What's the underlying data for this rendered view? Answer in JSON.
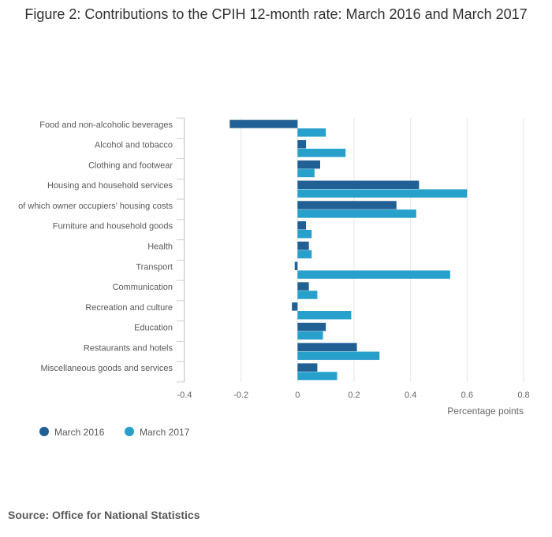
{
  "title": "Figure 2: Contributions to the CPIH 12-month rate: March 2016 and March 2017",
  "source": "Source: Office for National Statistics",
  "colors": {
    "series_2016": "#206095",
    "series_2017": "#27a0cc",
    "grid": "#e6e6e6",
    "axis_text": "#666666"
  },
  "chart_data": {
    "type": "bar",
    "orientation": "horizontal",
    "categories": [
      "Food and non-alcoholic beverages",
      "Alcohol and tobacco",
      "Clothing and footwear",
      "Housing and household services",
      "of which owner occupiers’ housing costs",
      "Furniture and household goods",
      "Health",
      "Transport",
      "Communication",
      "Recreation and culture",
      "Education",
      "Restaurants and hotels",
      "Miscellaneous goods and services"
    ],
    "series": [
      {
        "name": "March 2016",
        "color": "#206095",
        "values": [
          -0.24,
          0.03,
          0.08,
          0.43,
          0.35,
          0.03,
          0.04,
          -0.01,
          0.04,
          -0.02,
          0.1,
          0.21,
          0.07
        ]
      },
      {
        "name": "March 2017",
        "color": "#27a0cc",
        "values": [
          0.1,
          0.17,
          0.06,
          0.6,
          0.42,
          0.05,
          0.05,
          0.54,
          0.07,
          0.19,
          0.09,
          0.29,
          0.14
        ]
      }
    ],
    "xlabel": "Percentage points",
    "xlim": [
      -0.4,
      0.8
    ],
    "xticks": [
      -0.4,
      -0.2,
      0,
      0.2,
      0.4,
      0.6,
      0.8
    ],
    "grid": true,
    "legend_position": "bottom-left"
  }
}
